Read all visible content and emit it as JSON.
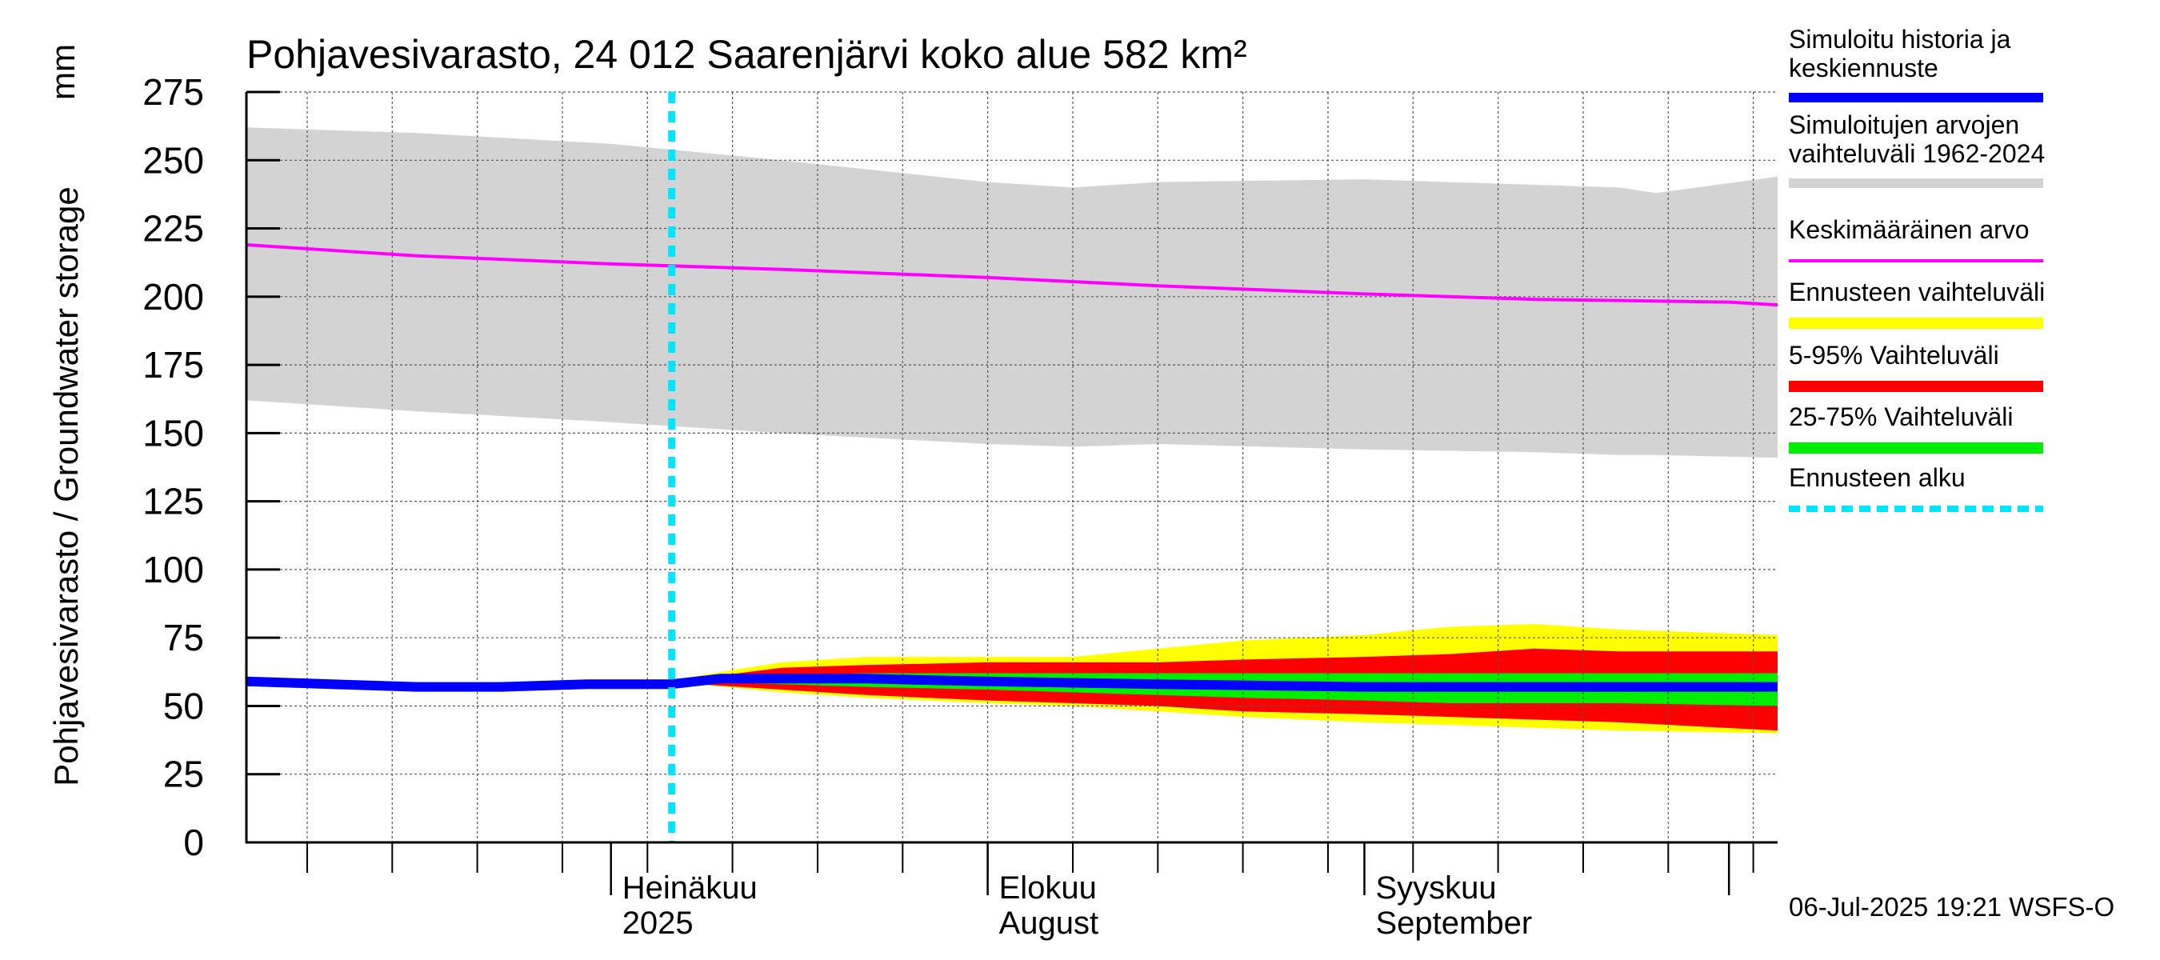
{
  "chart_data": {
    "type": "area",
    "title": "Pohjavesivarasto, 24 012 Saarenjärvi koko alue 582 km²",
    "unit_label": "mm",
    "ylabel": "Pohjavesivarasto / Groundwater storage",
    "ylim": [
      0,
      275
    ],
    "y_ticks": [
      0,
      25,
      50,
      75,
      100,
      125,
      150,
      175,
      200,
      225,
      250,
      275
    ],
    "x_range": [
      "2025-06-01",
      "2025-10-05"
    ],
    "x_tick_labels": [
      {
        "date": "2025-07-01",
        "line1": "Heinäkuu",
        "line2": "2025"
      },
      {
        "date": "2025-08-01",
        "line1": "Elokuu",
        "line2": "August"
      },
      {
        "date": "2025-09-01",
        "line1": "Syyskuu",
        "line2": "September"
      }
    ],
    "forecast_start": "2025-07-06",
    "grid": true,
    "legend_position": "right",
    "legend": [
      {
        "label1": "Simuloitu historia ja",
        "label2": "keskiennuste",
        "color": "#0000ff"
      },
      {
        "label1": "Simuloitujen arvojen",
        "label2": "vaihteluväli 1962-2024",
        "color": "#d3d3d3"
      },
      {
        "label1": "Keskimääräinen arvo",
        "label2": "",
        "color": "#ff00ff"
      },
      {
        "label1": "Ennusteen vaihteluväli",
        "label2": "",
        "color": "#ffff00"
      },
      {
        "label1": "5-95% Vaihteluväli",
        "label2": "",
        "color": "#ff0000"
      },
      {
        "label1": "25-75% Vaihteluväli",
        "label2": "",
        "color": "#00ee00"
      },
      {
        "label1": "Ennusteen alku",
        "label2": "",
        "color": "#00e5ff"
      }
    ],
    "historical_range": {
      "x": [
        "2025-06-01",
        "2025-06-15",
        "2025-07-01",
        "2025-07-15",
        "2025-08-01",
        "2025-08-08",
        "2025-08-15",
        "2025-09-01",
        "2025-09-15",
        "2025-09-22",
        "2025-09-25",
        "2025-10-05"
      ],
      "max": [
        262,
        260,
        256,
        250,
        242,
        240,
        242,
        243,
        241,
        240,
        238,
        244
      ],
      "min": [
        162,
        158,
        154,
        150,
        146,
        145,
        146,
        144,
        143,
        142,
        142,
        141
      ]
    },
    "mean_value": {
      "x": [
        "2025-06-01",
        "2025-06-15",
        "2025-07-01",
        "2025-07-15",
        "2025-08-01",
        "2025-08-15",
        "2025-09-01",
        "2025-09-15",
        "2025-10-01",
        "2025-10-05"
      ],
      "y": [
        219,
        215,
        212,
        210,
        207,
        204,
        201,
        199,
        198,
        197
      ]
    },
    "forecast_range": {
      "x": [
        "2025-07-08",
        "2025-07-15",
        "2025-07-22",
        "2025-08-01",
        "2025-08-08",
        "2025-08-15",
        "2025-08-22",
        "2025-09-01",
        "2025-09-08",
        "2025-09-15",
        "2025-09-22",
        "2025-10-05"
      ],
      "max": [
        61,
        66,
        68,
        68,
        68,
        71,
        74,
        76,
        79,
        80,
        78,
        76
      ],
      "min": [
        58,
        55,
        53,
        51,
        50,
        48,
        46,
        44,
        43,
        42,
        41,
        40
      ]
    },
    "range_5_95": {
      "x": [
        "2025-07-08",
        "2025-07-15",
        "2025-07-22",
        "2025-08-01",
        "2025-08-08",
        "2025-08-15",
        "2025-08-22",
        "2025-09-01",
        "2025-09-08",
        "2025-09-15",
        "2025-09-22",
        "2025-10-05"
      ],
      "max": [
        60,
        64,
        65,
        66,
        66,
        66,
        67,
        68,
        69,
        71,
        70,
        70
      ],
      "min": [
        58,
        56,
        54,
        52,
        51,
        50,
        48,
        47,
        46,
        45,
        44,
        41
      ]
    },
    "range_25_75": {
      "x": [
        "2025-07-08",
        "2025-07-15",
        "2025-07-22",
        "2025-08-01",
        "2025-08-08",
        "2025-08-15",
        "2025-08-22",
        "2025-09-01",
        "2025-09-08",
        "2025-09-15",
        "2025-09-22",
        "2025-10-05"
      ],
      "max": [
        60,
        61,
        62,
        62,
        62,
        62,
        62,
        62,
        62,
        62,
        62,
        62
      ],
      "min": [
        59,
        58,
        57,
        56,
        55,
        54,
        53,
        52,
        51,
        51,
        51,
        50
      ]
    },
    "simulated_mean": {
      "x": [
        "2025-06-01",
        "2025-06-08",
        "2025-06-15",
        "2025-06-22",
        "2025-06-29",
        "2025-07-06",
        "2025-07-10",
        "2025-07-22",
        "2025-08-01",
        "2025-08-15",
        "2025-09-01",
        "2025-09-15",
        "2025-10-05"
      ],
      "y": [
        59,
        58,
        57,
        57,
        58,
        58,
        60,
        60,
        59,
        58,
        57,
        57,
        57
      ]
    }
  },
  "footer": "06-Jul-2025 19:21 WSFS-O"
}
